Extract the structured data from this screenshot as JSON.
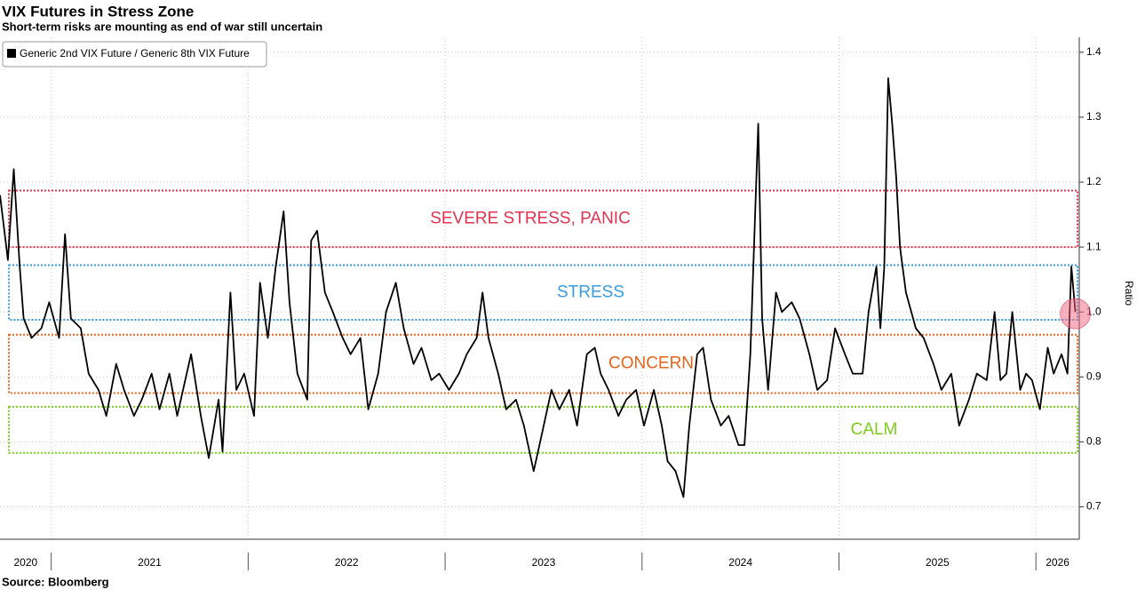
{
  "chart_data": {
    "type": "line",
    "title": "VIX Futures in Stress Zone",
    "subtitle": "Short-term risks are mounting as end of war still uncertain",
    "source": "Source: Bloomberg",
    "y_label": "Ratio",
    "legend": "top-left",
    "grid": true,
    "xlim": [
      2020.74,
      2026.22
    ],
    "ylim": [
      0.65,
      1.423
    ],
    "yticks": [
      0.7,
      0.8,
      0.9,
      {
        "value": 1,
        "label": "1.0"
      },
      1.1,
      1.2,
      1.3,
      1.4
    ],
    "xticks": [
      {
        "value": 2020.87,
        "label": "2020"
      },
      {
        "value": 2021.5,
        "label": "2021"
      },
      {
        "value": 2022.5,
        "label": "2022"
      },
      {
        "value": 2023.5,
        "label": "2023"
      },
      {
        "value": 2024.5,
        "label": "2024"
      },
      {
        "value": 2025.5,
        "label": "2025"
      },
      {
        "value": 2026.11,
        "label": "2026"
      }
    ],
    "year_boundaries": [
      2021,
      2022,
      2023,
      2024,
      2025,
      2026
    ],
    "zones": [
      {
        "label": "SEVERE STRESS, PANIC",
        "color": "#e0334f",
        "range": [
          1.1,
          1.187
        ]
      },
      {
        "label": "STRESS",
        "color": "#3a9be0",
        "range": [
          0.988,
          1.072
        ]
      },
      {
        "label": "CONCERN",
        "color": "#e5651c",
        "range": [
          0.875,
          0.965
        ]
      },
      {
        "label": "CALM",
        "color": "#7dcc1c",
        "range": [
          0.783,
          0.854
        ]
      }
    ],
    "x": [
      2020.74,
      2020.78,
      2020.81,
      2020.84,
      2020.86,
      2020.9,
      2020.95,
      2020.99,
      2021.04,
      2021.07,
      2021.1,
      2021.15,
      2021.19,
      2021.24,
      2021.28,
      2021.33,
      2021.37,
      2021.42,
      2021.46,
      2021.51,
      2021.55,
      2021.6,
      2021.64,
      2021.71,
      2021.76,
      2021.8,
      2021.85,
      2021.87,
      2021.91,
      2021.94,
      2021.98,
      2022.03,
      2022.06,
      2022.1,
      2022.14,
      2022.18,
      2022.21,
      2022.25,
      2022.3,
      2022.32,
      2022.35,
      2022.39,
      2022.43,
      2022.48,
      2022.52,
      2022.57,
      2022.61,
      2022.66,
      2022.7,
      2022.75,
      2022.79,
      2022.84,
      2022.88,
      2022.93,
      2022.97,
      2023.02,
      2023.07,
      2023.11,
      2023.16,
      2023.19,
      2023.22,
      2023.27,
      2023.31,
      2023.36,
      2023.4,
      2023.45,
      2023.49,
      2023.54,
      2023.58,
      2023.63,
      2023.67,
      2023.72,
      2023.76,
      2023.79,
      2023.83,
      2023.88,
      2023.92,
      2023.97,
      2024.01,
      2024.06,
      2024.1,
      2024.13,
      2024.17,
      2024.21,
      2024.24,
      2024.28,
      2024.31,
      2024.35,
      2024.4,
      2024.44,
      2024.49,
      2024.52,
      2024.55,
      2024.59,
      2024.61,
      2024.64,
      2024.68,
      2024.71,
      2024.76,
      2024.8,
      2024.85,
      2024.89,
      2024.94,
      2024.98,
      2025.03,
      2025.07,
      2025.12,
      2025.15,
      2025.19,
      2025.21,
      2025.23,
      2025.25,
      2025.27,
      2025.29,
      2025.31,
      2025.34,
      2025.39,
      2025.43,
      2025.48,
      2025.52,
      2025.57,
      2025.61,
      2025.66,
      2025.7,
      2025.75,
      2025.79,
      2025.82,
      2025.85,
      2025.88,
      2025.92,
      2025.95,
      2025.98,
      2026.02,
      2026.06,
      2026.09,
      2026.13,
      2026.16,
      2026.18,
      2026.2
    ],
    "series": [
      {
        "name": "Generic 2nd VIX Future / Generic 8th VIX Future",
        "color": "#000000",
        "values": [
          1.18,
          1.08,
          1.22,
          1.07,
          0.99,
          0.96,
          0.975,
          1.015,
          0.96,
          1.12,
          0.99,
          0.975,
          0.905,
          0.88,
          0.84,
          0.92,
          0.88,
          0.84,
          0.865,
          0.905,
          0.85,
          0.905,
          0.84,
          0.935,
          0.84,
          0.775,
          0.865,
          0.785,
          1.03,
          0.88,
          0.905,
          0.84,
          1.045,
          0.96,
          1.07,
          1.155,
          1.015,
          0.905,
          0.865,
          1.11,
          1.125,
          1.03,
          1.0,
          0.96,
          0.935,
          0.96,
          0.85,
          0.905,
          1.0,
          1.045,
          0.975,
          0.92,
          0.945,
          0.895,
          0.905,
          0.88,
          0.905,
          0.935,
          0.96,
          1.03,
          0.96,
          0.905,
          0.85,
          0.865,
          0.825,
          0.755,
          0.81,
          0.88,
          0.85,
          0.88,
          0.825,
          0.935,
          0.945,
          0.905,
          0.88,
          0.84,
          0.865,
          0.88,
          0.825,
          0.88,
          0.825,
          0.77,
          0.755,
          0.715,
          0.825,
          0.935,
          0.945,
          0.865,
          0.825,
          0.84,
          0.795,
          0.795,
          0.935,
          1.29,
          0.99,
          0.88,
          1.03,
          1.0,
          1.015,
          0.99,
          0.935,
          0.88,
          0.895,
          0.975,
          0.935,
          0.905,
          0.905,
          1.0,
          1.07,
          0.975,
          1.07,
          1.36,
          1.29,
          1.21,
          1.1,
          1.03,
          0.975,
          0.96,
          0.92,
          0.88,
          0.905,
          0.825,
          0.865,
          0.905,
          0.895,
          1.0,
          0.895,
          0.905,
          1.0,
          0.88,
          0.905,
          0.895,
          0.85,
          0.945,
          0.905,
          0.935,
          0.905,
          1.07,
          1.0
        ]
      }
    ]
  }
}
